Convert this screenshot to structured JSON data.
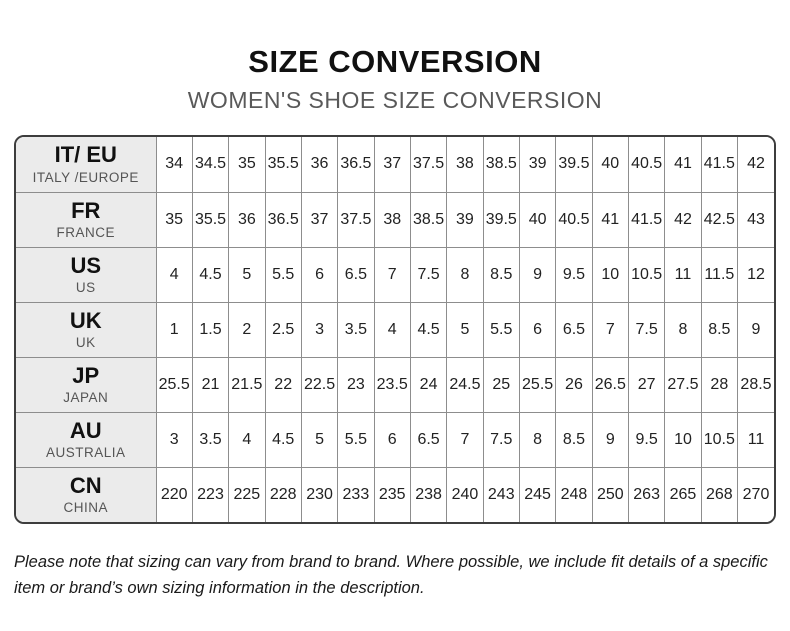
{
  "page": {
    "title": "SIZE CONVERSION",
    "subtitle": "WOMEN'S SHOE SIZE CONVERSION",
    "footnote": "Please note that sizing can vary from brand to brand. Where possible, we include fit details of a specific item or brand’s own sizing information in the description."
  },
  "colors": {
    "title_text": "#111111",
    "subtitle_text": "#595959",
    "header_cell_bg": "#ebebeb",
    "outer_border": "#3d3d3d",
    "grid_line": "#8d8d8d",
    "cell_text": "#222222",
    "sublabel_text": "#555555",
    "footnote_text": "#1a1a1a"
  },
  "table": {
    "rows": [
      {
        "code": "IT/ EU",
        "region": "ITALY /EUROPE",
        "sizes": [
          "34",
          "34.5",
          "35",
          "35.5",
          "36",
          "36.5",
          "37",
          "37.5",
          "38",
          "38.5",
          "39",
          "39.5",
          "40",
          "40.5",
          "41",
          "41.5",
          "42"
        ]
      },
      {
        "code": "FR",
        "region": "FRANCE",
        "sizes": [
          "35",
          "35.5",
          "36",
          "36.5",
          "37",
          "37.5",
          "38",
          "38.5",
          "39",
          "39.5",
          "40",
          "40.5",
          "41",
          "41.5",
          "42",
          "42.5",
          "43"
        ]
      },
      {
        "code": "US",
        "region": "US",
        "sizes": [
          "4",
          "4.5",
          "5",
          "5.5",
          "6",
          "6.5",
          "7",
          "7.5",
          "8",
          "8.5",
          "9",
          "9.5",
          "10",
          "10.5",
          "11",
          "11.5",
          "12"
        ]
      },
      {
        "code": "UK",
        "region": "UK",
        "sizes": [
          "1",
          "1.5",
          "2",
          "2.5",
          "3",
          "3.5",
          "4",
          "4.5",
          "5",
          "5.5",
          "6",
          "6.5",
          "7",
          "7.5",
          "8",
          "8.5",
          "9"
        ]
      },
      {
        "code": "JP",
        "region": "JAPAN",
        "sizes": [
          "25.5",
          "21",
          "21.5",
          "22",
          "22.5",
          "23",
          "23.5",
          "24",
          "24.5",
          "25",
          "25.5",
          "26",
          "26.5",
          "27",
          "27.5",
          "28",
          "28.5"
        ]
      },
      {
        "code": "AU",
        "region": "AUSTRALIA",
        "sizes": [
          "3",
          "3.5",
          "4",
          "4.5",
          "5",
          "5.5",
          "6",
          "6.5",
          "7",
          "7.5",
          "8",
          "8.5",
          "9",
          "9.5",
          "10",
          "10.5",
          "11"
        ]
      },
      {
        "code": "CN",
        "region": "CHINA",
        "sizes": [
          "220",
          "223",
          "225",
          "228",
          "230",
          "233",
          "235",
          "238",
          "240",
          "243",
          "245",
          "248",
          "250",
          "263",
          "265",
          "268",
          "270"
        ]
      }
    ]
  }
}
